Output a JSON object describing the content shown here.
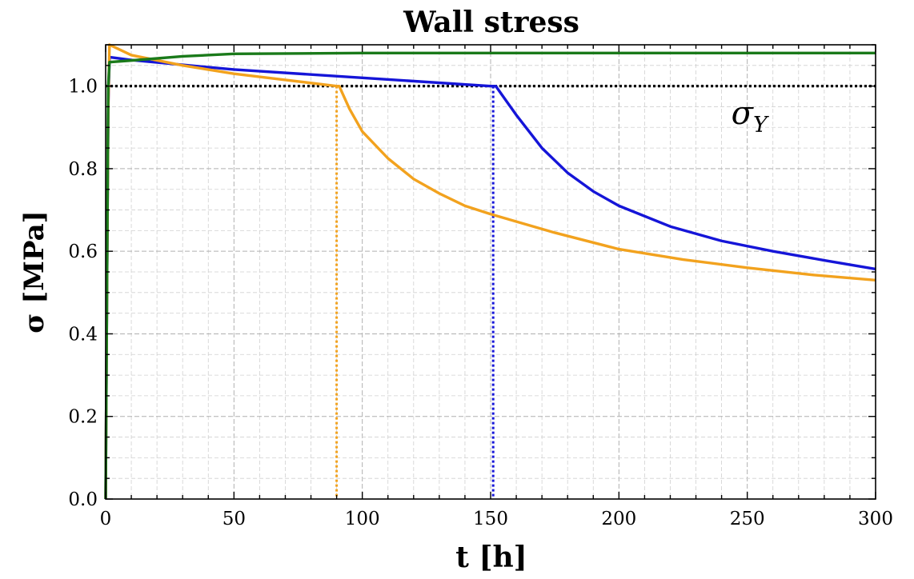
{
  "chart_data": {
    "type": "line",
    "title": "Wall stress",
    "xlabel": "t [h]",
    "ylabel": "σ [MPa]",
    "xlim": [
      0,
      300
    ],
    "ylim": [
      0,
      1.1
    ],
    "x_ticks": [
      0,
      50,
      100,
      150,
      200,
      250,
      300
    ],
    "x_tick_labels": [
      "0",
      "50",
      "100",
      "150",
      "200",
      "250",
      "300"
    ],
    "y_ticks": [
      0.0,
      0.2,
      0.4,
      0.6,
      0.8,
      1.0
    ],
    "y_tick_labels": [
      "0.0",
      "0.2",
      "0.4",
      "0.6",
      "0.8",
      "1.0"
    ],
    "grid": true,
    "legend": "none",
    "series": [
      {
        "color": "#1515d8",
        "points": [
          [
            0,
            0
          ],
          [
            0.5,
            0.5
          ],
          [
            1,
            0.95
          ],
          [
            1.5,
            1.07
          ],
          [
            10,
            1.063
          ],
          [
            50,
            1.04
          ],
          [
            100,
            1.02
          ],
          [
            150,
            1.0
          ],
          [
            152,
            1.0
          ],
          [
            160,
            0.93
          ],
          [
            170,
            0.85
          ],
          [
            180,
            0.79
          ],
          [
            190,
            0.745
          ],
          [
            200,
            0.71
          ],
          [
            220,
            0.66
          ],
          [
            240,
            0.625
          ],
          [
            260,
            0.6
          ],
          [
            280,
            0.578
          ],
          [
            300,
            0.557
          ]
        ]
      },
      {
        "color": "#f2a21e",
        "points": [
          [
            0,
            0
          ],
          [
            0.5,
            0.5
          ],
          [
            1,
            0.95
          ],
          [
            1.5,
            1.1
          ],
          [
            10,
            1.075
          ],
          [
            30,
            1.05
          ],
          [
            50,
            1.03
          ],
          [
            70,
            1.015
          ],
          [
            90,
            1.0
          ],
          [
            91,
            1.0
          ],
          [
            95,
            0.945
          ],
          [
            100,
            0.89
          ],
          [
            110,
            0.825
          ],
          [
            120,
            0.775
          ],
          [
            130,
            0.74
          ],
          [
            140,
            0.71
          ],
          [
            150,
            0.69
          ],
          [
            175,
            0.645
          ],
          [
            200,
            0.605
          ],
          [
            225,
            0.58
          ],
          [
            250,
            0.56
          ],
          [
            275,
            0.543
          ],
          [
            300,
            0.53
          ]
        ]
      },
      {
        "color": "#1a7a1a",
        "points": [
          [
            0,
            0
          ],
          [
            0.5,
            0.5
          ],
          [
            1,
            1.0
          ],
          [
            1.5,
            1.058
          ],
          [
            10,
            1.062
          ],
          [
            30,
            1.072
          ],
          [
            50,
            1.078
          ],
          [
            100,
            1.08
          ],
          [
            200,
            1.08
          ],
          [
            300,
            1.08
          ]
        ]
      }
    ],
    "reference_lines": [
      {
        "kind": "horizontal",
        "y": 1.0,
        "color": "#000000",
        "style": "dotted"
      },
      {
        "kind": "vertical",
        "x": 90,
        "y_top": 1.0,
        "color": "#f2a21e",
        "style": "dotted"
      },
      {
        "kind": "vertical",
        "x": 151,
        "y_top": 1.0,
        "color": "#1515d8",
        "style": "dotted"
      }
    ],
    "annotations": [
      {
        "text": "σ",
        "subscript": "Y",
        "x": 250,
        "y": 0.935
      }
    ]
  }
}
